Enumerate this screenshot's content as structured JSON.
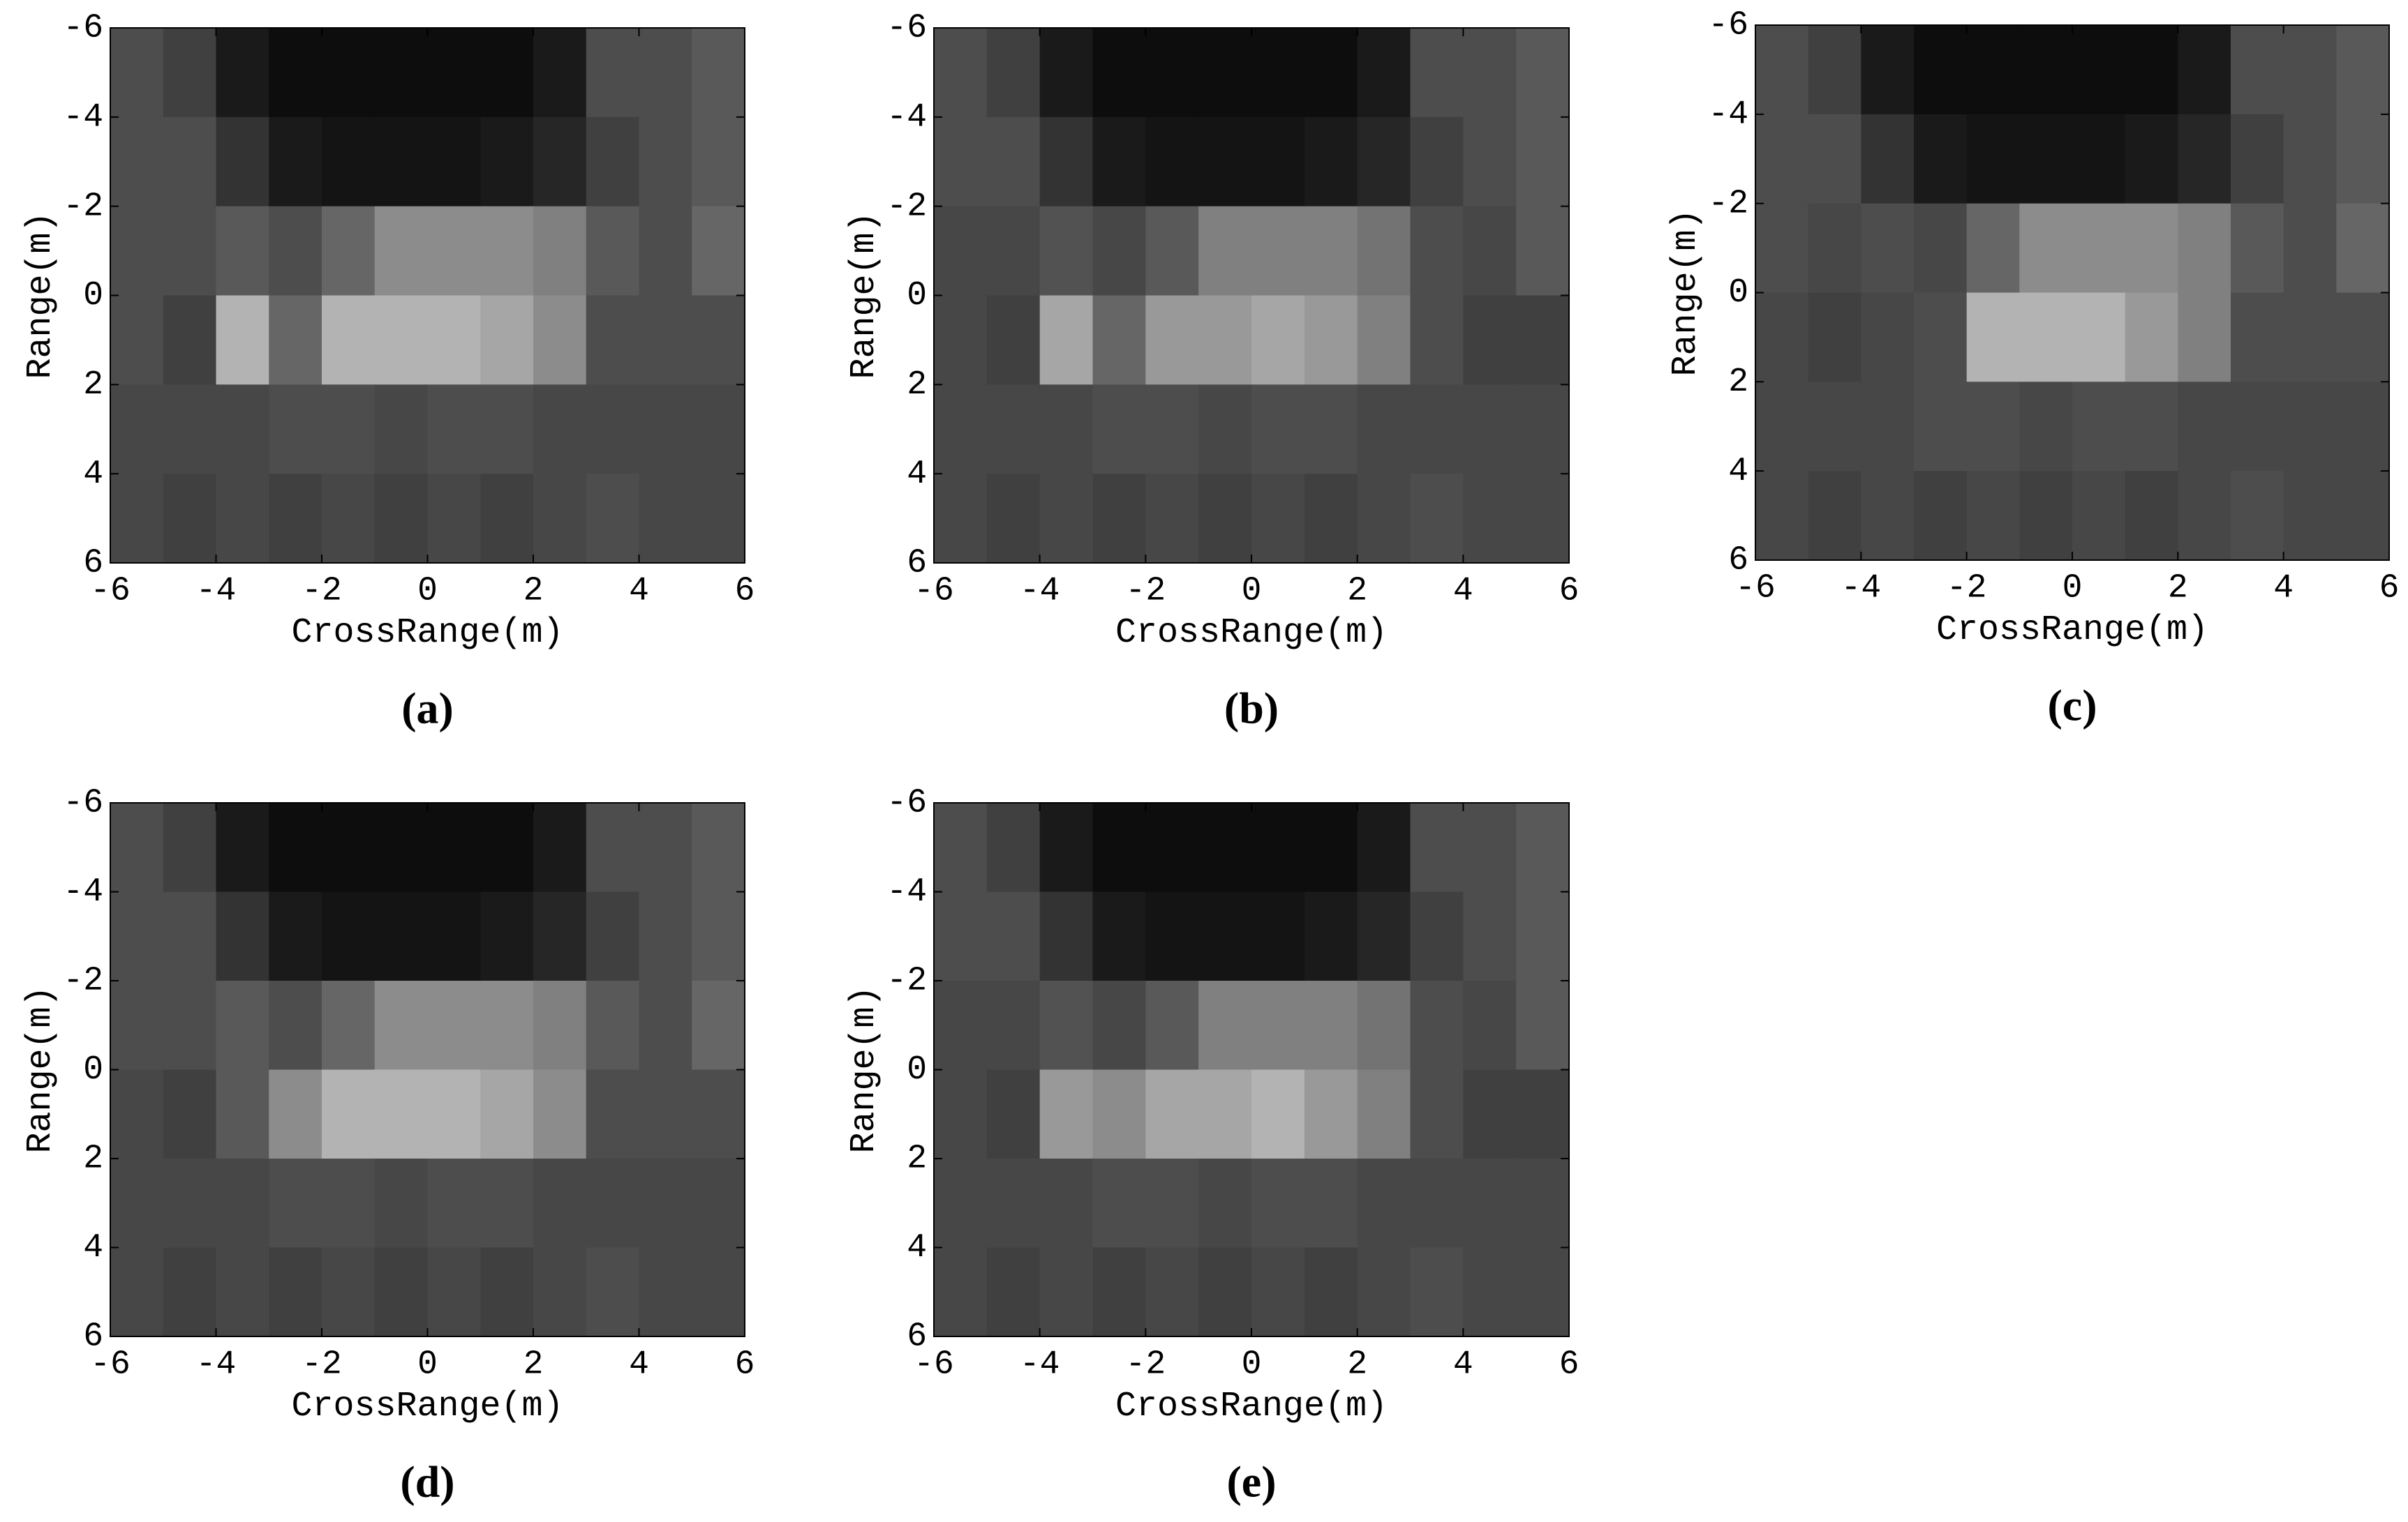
{
  "chart_data": [
    {
      "type": "heatmap",
      "panel_label": "(a)",
      "xlabel": "CrossRange(m)",
      "ylabel": "Range(m)",
      "colormap": "gray",
      "zlim": [
        0,
        100
      ],
      "xlim": [
        -6,
        6
      ],
      "ylim": [
        6,
        -6
      ],
      "xticks": [
        -6,
        -4,
        -2,
        0,
        2,
        4,
        6
      ],
      "yticks": [
        -6,
        -4,
        -2,
        0,
        2,
        4,
        6
      ],
      "z": [
        [
          30,
          25,
          10,
          5,
          5,
          5,
          5,
          5,
          10,
          30,
          30,
          35
        ],
        [
          30,
          30,
          20,
          10,
          8,
          8,
          8,
          10,
          15,
          25,
          30,
          35
        ],
        [
          30,
          30,
          35,
          30,
          40,
          55,
          55,
          55,
          50,
          35,
          30,
          40
        ],
        [
          30,
          25,
          70,
          40,
          70,
          70,
          70,
          65,
          55,
          30,
          30,
          30
        ],
        [
          28,
          28,
          28,
          30,
          30,
          28,
          30,
          30,
          28,
          28,
          28,
          28
        ],
        [
          28,
          25,
          28,
          25,
          28,
          25,
          28,
          25,
          28,
          30,
          28,
          28
        ]
      ]
    },
    {
      "type": "heatmap",
      "panel_label": "(b)",
      "xlabel": "CrossRange(m)",
      "ylabel": "Range(m)",
      "colormap": "gray",
      "zlim": [
        0,
        100
      ],
      "xlim": [
        -6,
        6
      ],
      "ylim": [
        6,
        -6
      ],
      "xticks": [
        -6,
        -4,
        -2,
        0,
        2,
        4,
        6
      ],
      "yticks": [
        -6,
        -4,
        -2,
        0,
        2,
        4,
        6
      ],
      "z": [
        [
          30,
          25,
          10,
          5,
          5,
          5,
          5,
          5,
          10,
          30,
          30,
          35
        ],
        [
          30,
          30,
          20,
          10,
          8,
          8,
          8,
          10,
          15,
          25,
          30,
          35
        ],
        [
          28,
          28,
          32,
          28,
          35,
          50,
          50,
          50,
          45,
          30,
          28,
          35
        ],
        [
          28,
          25,
          65,
          40,
          60,
          60,
          65,
          60,
          50,
          30,
          25,
          25
        ],
        [
          28,
          28,
          28,
          30,
          30,
          28,
          30,
          30,
          28,
          28,
          28,
          28
        ],
        [
          28,
          25,
          28,
          25,
          28,
          25,
          28,
          25,
          28,
          30,
          28,
          28
        ]
      ]
    },
    {
      "type": "heatmap",
      "panel_label": "(c)",
      "xlabel": "CrossRange(m)",
      "ylabel": "Range(m)",
      "colormap": "gray",
      "zlim": [
        0,
        100
      ],
      "xlim": [
        -6,
        6
      ],
      "ylim": [
        6,
        -6
      ],
      "xticks": [
        -6,
        -4,
        -2,
        0,
        2,
        4,
        6
      ],
      "yticks": [
        -6,
        -4,
        -2,
        0,
        2,
        4,
        6
      ],
      "z": [
        [
          30,
          25,
          10,
          5,
          5,
          5,
          5,
          5,
          10,
          30,
          30,
          35
        ],
        [
          30,
          30,
          20,
          10,
          8,
          8,
          8,
          10,
          15,
          25,
          30,
          35
        ],
        [
          30,
          28,
          30,
          28,
          40,
          55,
          55,
          55,
          50,
          35,
          30,
          40
        ],
        [
          28,
          25,
          28,
          30,
          70,
          70,
          70,
          60,
          50,
          30,
          30,
          30
        ],
        [
          28,
          28,
          28,
          30,
          30,
          28,
          30,
          30,
          28,
          28,
          28,
          28
        ],
        [
          28,
          25,
          28,
          25,
          28,
          25,
          28,
          25,
          28,
          30,
          28,
          28
        ]
      ]
    },
    {
      "type": "heatmap",
      "panel_label": "(d)",
      "xlabel": "CrossRange(m)",
      "ylabel": "Range(m)",
      "colormap": "gray",
      "zlim": [
        0,
        100
      ],
      "xlim": [
        -6,
        6
      ],
      "ylim": [
        6,
        -6
      ],
      "xticks": [
        -6,
        -4,
        -2,
        0,
        2,
        4,
        6
      ],
      "yticks": [
        -6,
        -4,
        -2,
        0,
        2,
        4,
        6
      ],
      "z": [
        [
          30,
          25,
          10,
          5,
          5,
          5,
          5,
          5,
          10,
          30,
          30,
          35
        ],
        [
          30,
          30,
          20,
          10,
          8,
          8,
          8,
          10,
          15,
          25,
          30,
          35
        ],
        [
          30,
          30,
          35,
          30,
          40,
          55,
          55,
          55,
          50,
          35,
          30,
          40
        ],
        [
          28,
          25,
          35,
          55,
          70,
          70,
          70,
          65,
          55,
          30,
          30,
          30
        ],
        [
          28,
          28,
          28,
          30,
          30,
          28,
          30,
          30,
          28,
          28,
          28,
          28
        ],
        [
          28,
          25,
          28,
          25,
          28,
          25,
          28,
          25,
          28,
          30,
          28,
          28
        ]
      ]
    },
    {
      "type": "heatmap",
      "panel_label": "(e)",
      "xlabel": "CrossRange(m)",
      "ylabel": "Range(m)",
      "colormap": "gray",
      "zlim": [
        0,
        100
      ],
      "xlim": [
        -6,
        6
      ],
      "ylim": [
        6,
        -6
      ],
      "xticks": [
        -6,
        -4,
        -2,
        0,
        2,
        4,
        6
      ],
      "yticks": [
        -6,
        -4,
        -2,
        0,
        2,
        4,
        6
      ],
      "z": [
        [
          30,
          25,
          10,
          5,
          5,
          5,
          5,
          5,
          10,
          30,
          30,
          35
        ],
        [
          30,
          30,
          20,
          10,
          8,
          8,
          8,
          10,
          15,
          25,
          30,
          35
        ],
        [
          28,
          28,
          32,
          28,
          35,
          50,
          50,
          50,
          45,
          30,
          28,
          35
        ],
        [
          28,
          25,
          60,
          55,
          65,
          65,
          70,
          60,
          50,
          30,
          25,
          25
        ],
        [
          28,
          28,
          28,
          30,
          30,
          28,
          30,
          30,
          28,
          28,
          28,
          28
        ],
        [
          28,
          25,
          28,
          25,
          28,
          25,
          28,
          25,
          28,
          30,
          28,
          28
        ]
      ]
    }
  ]
}
